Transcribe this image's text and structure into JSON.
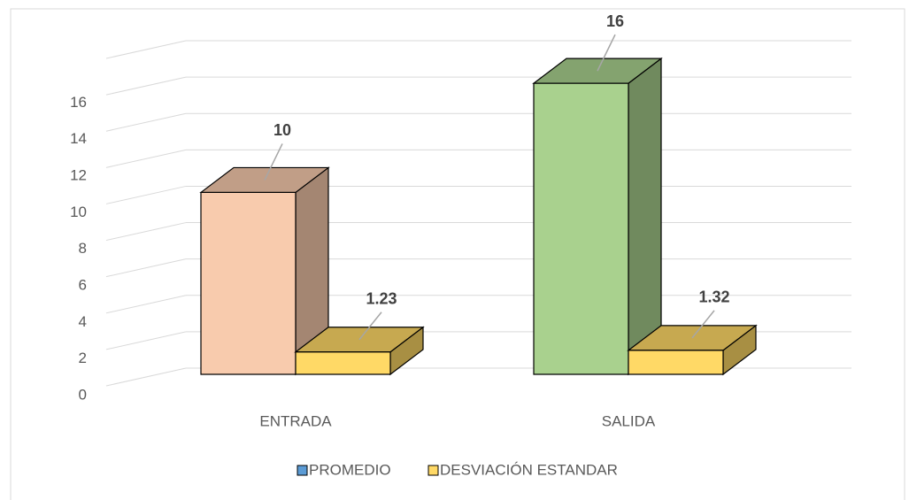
{
  "chart_data": {
    "type": "bar3d",
    "categories": [
      "ENTRADA",
      "SALIDA"
    ],
    "series": [
      {
        "name": "PROMEDIO",
        "color": "#5B9BD5",
        "point_colors": [
          "#F8CBAD",
          "#A9D18E"
        ],
        "values": [
          10,
          16
        ]
      },
      {
        "name": "DESVIACIÓN ESTANDAR",
        "color": "#FFD966",
        "values": [
          1.23,
          1.32
        ]
      }
    ],
    "ylim": [
      0,
      18
    ],
    "yticks": [
      0,
      2,
      4,
      6,
      8,
      10,
      12,
      14,
      16
    ],
    "grid": true,
    "legend": "bottom"
  }
}
